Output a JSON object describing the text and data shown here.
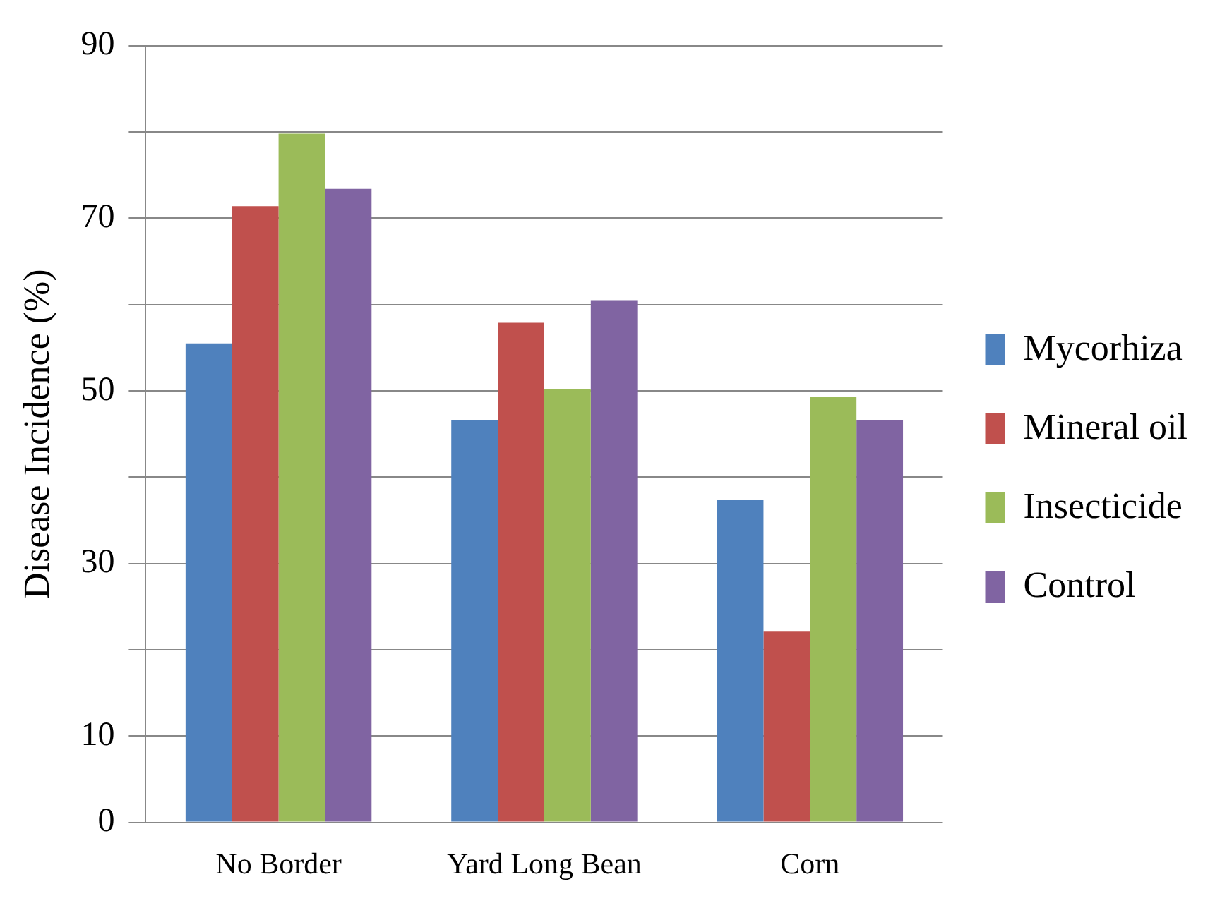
{
  "chart_data": {
    "type": "bar",
    "ylabel": "Disease Incidence (%)",
    "categories": [
      "No Border",
      "Yard Long Bean",
      "Corn"
    ],
    "series": [
      {
        "name": "Mycorhiza",
        "color": "#4f81bd",
        "values": [
          55.5,
          46.6,
          37.4
        ]
      },
      {
        "name": "Mineral oil",
        "color": "#c0504d",
        "values": [
          71.4,
          57.9,
          22.1
        ]
      },
      {
        "name": "Insecticide",
        "color": "#9bbb59",
        "values": [
          79.8,
          50.2,
          49.3
        ]
      },
      {
        "name": "Control",
        "color": "#8064a2",
        "values": [
          73.4,
          60.5,
          46.6
        ]
      }
    ],
    "ylim": [
      0,
      90
    ],
    "yticks": [
      0,
      10,
      {
        "value": 20,
        "label": null
      },
      30,
      {
        "value": 40,
        "label": null
      },
      50,
      {
        "value": 60,
        "label": null
      },
      70,
      {
        "value": 80,
        "label": null
      },
      90
    ],
    "grid": "y",
    "legend": "right"
  }
}
